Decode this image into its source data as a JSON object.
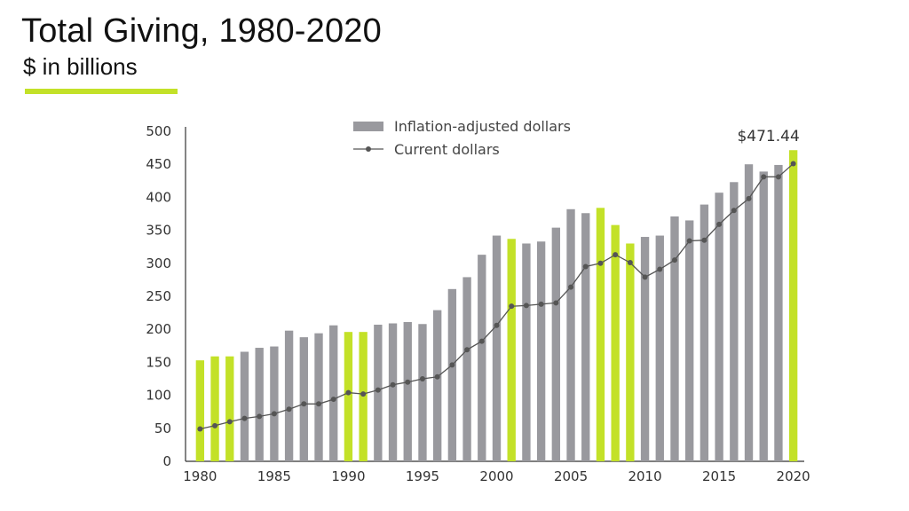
{
  "header": {
    "title": "Total Giving, 1980-2020",
    "subtitle": "$ in billions"
  },
  "colors": {
    "bar_gray": "#99999e",
    "bar_highlight": "#c3e128",
    "line": "#555555",
    "axis": "#333333"
  },
  "chart_data": {
    "type": "bar",
    "title": "Total Giving, 1980-2020",
    "subtitle": "$ in billions",
    "x": [
      1980,
      1981,
      1982,
      1983,
      1984,
      1985,
      1986,
      1987,
      1988,
      1989,
      1990,
      1991,
      1992,
      1993,
      1994,
      1995,
      1996,
      1997,
      1998,
      1999,
      2000,
      2001,
      2002,
      2003,
      2004,
      2005,
      2006,
      2007,
      2008,
      2009,
      2010,
      2011,
      2012,
      2013,
      2014,
      2015,
      2016,
      2017,
      2018,
      2019,
      2020
    ],
    "xticks": [
      1980,
      1985,
      1990,
      1995,
      2000,
      2005,
      2010,
      2015,
      2020
    ],
    "yticks": [
      0,
      50,
      100,
      150,
      200,
      250,
      300,
      350,
      400,
      450,
      500
    ],
    "ylim": [
      0,
      500
    ],
    "grid": false,
    "legend_position": "top",
    "highlight_years": [
      1980,
      1981,
      1982,
      1990,
      1991,
      2001,
      2007,
      2008,
      2009,
      2020
    ],
    "series": [
      {
        "name": "Inflation-adjusted dollars",
        "kind": "bar",
        "values": [
          153,
          159,
          159,
          166,
          172,
          174,
          198,
          188,
          194,
          206,
          196,
          196,
          207,
          209,
          211,
          208,
          229,
          261,
          279,
          313,
          342,
          337,
          330,
          333,
          354,
          382,
          376,
          384,
          358,
          330,
          340,
          342,
          371,
          365,
          389,
          407,
          423,
          450,
          439,
          449,
          471.44
        ]
      },
      {
        "name": "Current dollars",
        "kind": "line",
        "values": [
          49,
          54,
          60,
          65,
          68,
          72,
          79,
          87,
          87,
          94,
          104,
          102,
          108,
          116,
          120,
          125,
          128,
          146,
          169,
          182,
          206,
          235,
          236,
          238,
          240,
          264,
          295,
          300,
          313,
          301,
          279,
          291,
          305,
          334,
          335,
          359,
          380,
          398,
          431,
          431,
          451
        ]
      }
    ],
    "annotations": [
      {
        "year": 2020,
        "label": "$471.44"
      }
    ]
  }
}
